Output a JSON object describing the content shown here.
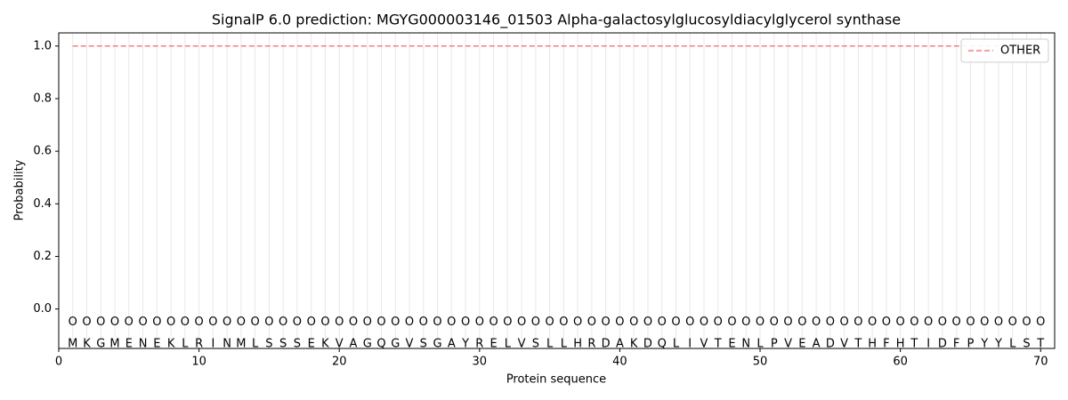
{
  "chart_data": {
    "type": "line",
    "title": "SignalP 6.0 prediction: MGYG000003146_01503 Alpha-galactosylglucosyldiacylglycerol synthase",
    "xlabel": "Protein sequence",
    "ylabel": "Probability",
    "x": [
      1,
      2,
      3,
      4,
      5,
      6,
      7,
      8,
      9,
      10,
      11,
      12,
      13,
      14,
      15,
      16,
      17,
      18,
      19,
      20,
      21,
      22,
      23,
      24,
      25,
      26,
      27,
      28,
      29,
      30,
      31,
      32,
      33,
      34,
      35,
      36,
      37,
      38,
      39,
      40,
      41,
      42,
      43,
      44,
      45,
      46,
      47,
      48,
      49,
      50,
      51,
      52,
      53,
      54,
      55,
      56,
      57,
      58,
      59,
      60,
      61,
      62,
      63,
      64,
      65,
      66,
      67,
      68,
      69,
      70
    ],
    "sequence": [
      "M",
      "K",
      "G",
      "M",
      "E",
      "N",
      "E",
      "K",
      "L",
      "R",
      "I",
      "N",
      "M",
      "L",
      "S",
      "S",
      "S",
      "E",
      "K",
      "V",
      "A",
      "G",
      "Q",
      "G",
      "V",
      "S",
      "G",
      "A",
      "Y",
      "R",
      "E",
      "L",
      "V",
      "S",
      "L",
      "L",
      "H",
      "R",
      "D",
      "A",
      "K",
      "D",
      "Q",
      "L",
      "I",
      "V",
      "T",
      "E",
      "N",
      "L",
      "P",
      "V",
      "E",
      "A",
      "D",
      "V",
      "T",
      "H",
      "F",
      "H",
      "T",
      "I",
      "D",
      "F",
      "P",
      "Y",
      "Y",
      "L",
      "S",
      "T"
    ],
    "labels": [
      "O",
      "O",
      "O",
      "O",
      "O",
      "O",
      "O",
      "O",
      "O",
      "O",
      "O",
      "O",
      "O",
      "O",
      "O",
      "O",
      "O",
      "O",
      "O",
      "O",
      "O",
      "O",
      "O",
      "O",
      "O",
      "O",
      "O",
      "O",
      "O",
      "O",
      "O",
      "O",
      "O",
      "O",
      "O",
      "O",
      "O",
      "O",
      "O",
      "O",
      "O",
      "O",
      "O",
      "O",
      "O",
      "O",
      "O",
      "O",
      "O",
      "O",
      "O",
      "O",
      "O",
      "O",
      "O",
      "O",
      "O",
      "O",
      "O",
      "O",
      "O",
      "O",
      "O",
      "O",
      "O",
      "O",
      "O",
      "O",
      "O",
      "O"
    ],
    "series": [
      {
        "name": "OTHER",
        "color": "#f08080",
        "values": [
          1,
          1,
          1,
          1,
          1,
          1,
          1,
          1,
          1,
          1,
          1,
          1,
          1,
          1,
          1,
          1,
          1,
          1,
          1,
          1,
          1,
          1,
          1,
          1,
          1,
          1,
          1,
          1,
          1,
          1,
          1,
          1,
          1,
          1,
          1,
          1,
          1,
          1,
          1,
          1,
          1,
          1,
          1,
          1,
          1,
          1,
          1,
          1,
          1,
          1,
          1,
          1,
          1,
          1,
          1,
          1,
          1,
          1,
          1,
          1,
          1,
          1,
          1,
          1,
          1,
          1,
          1,
          1,
          1,
          1
        ]
      }
    ],
    "xlim": [
      0,
      71
    ],
    "ylim": [
      -0.15,
      1.05
    ],
    "xticks": [
      0,
      10,
      20,
      30,
      40,
      50,
      60,
      70
    ],
    "yticks": [
      {
        "value": 0,
        "label": "0.0"
      },
      {
        "value": 0.2,
        "label": "0.2"
      },
      {
        "value": 0.4,
        "label": "0.4"
      },
      {
        "value": 0.6,
        "label": "0.6"
      },
      {
        "value": 0.8,
        "label": "0.8"
      },
      {
        "value": 1,
        "label": "1.0"
      }
    ],
    "legend": "upper right"
  }
}
